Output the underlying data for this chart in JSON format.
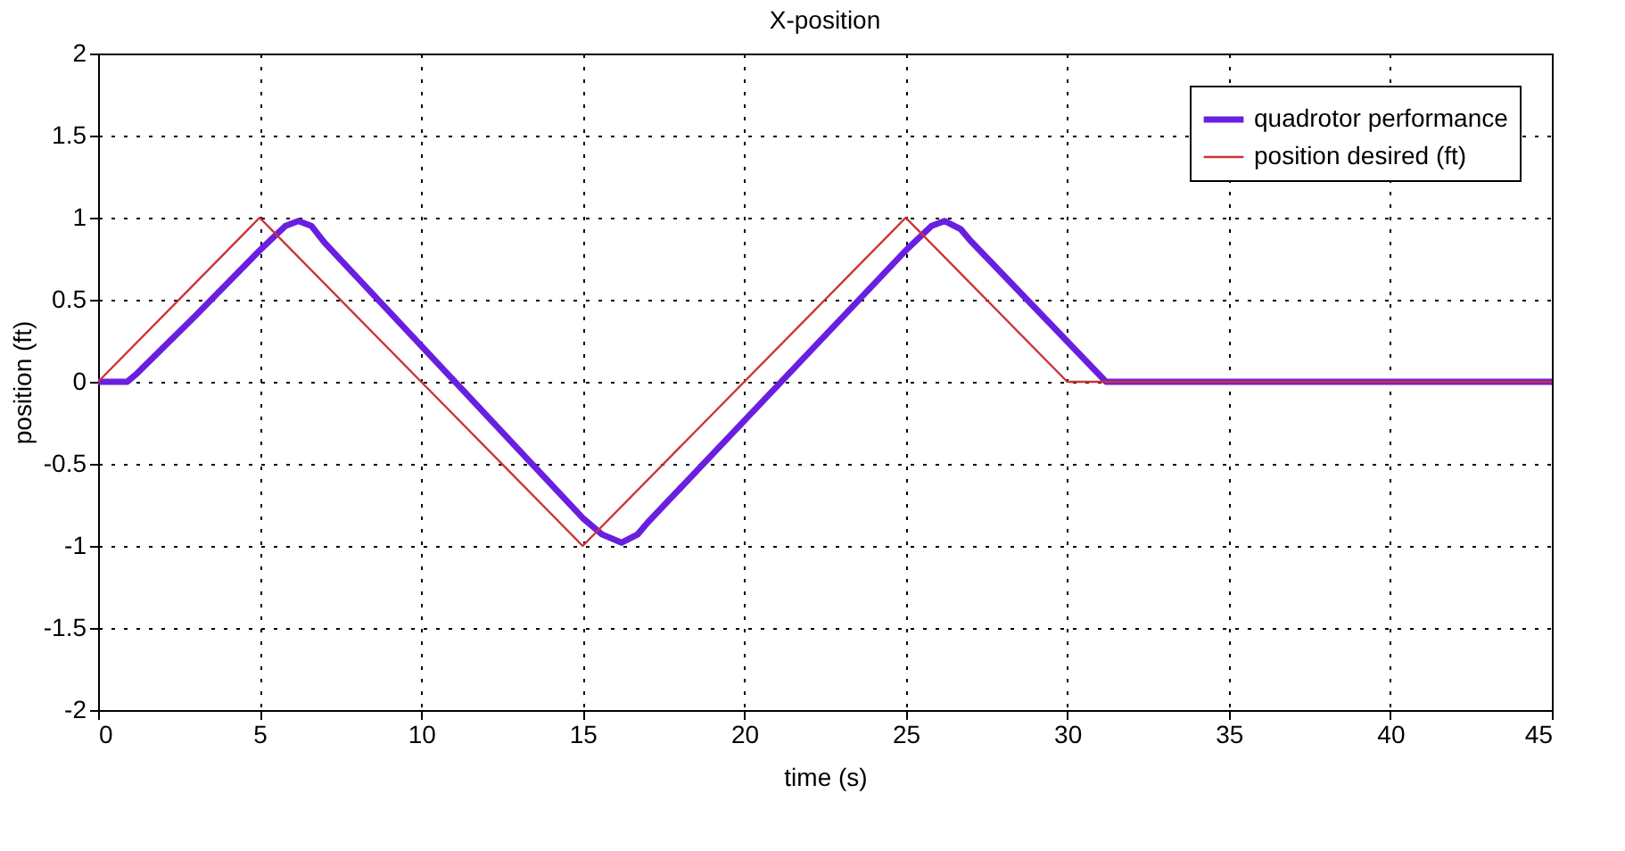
{
  "chart_data": {
    "type": "line",
    "title": "X-position",
    "xlabel": "time (s)",
    "ylabel": "position (ft)",
    "xlim": [
      0,
      45
    ],
    "xticks": [
      0,
      5,
      10,
      15,
      20,
      25,
      30,
      35,
      40,
      45
    ],
    "ylim": [
      -2,
      2
    ],
    "yticks": [
      -2,
      -1.5,
      -1,
      -0.5,
      0,
      0.5,
      1,
      1.5,
      2
    ],
    "grid": true,
    "legend": "top right",
    "line_style": "solid",
    "marker": "none",
    "series": [
      {
        "name": "quadrotor performance",
        "color": "#6a1fe0",
        "x": [
          0,
          0.9,
          1.2,
          3,
          5,
          5.8,
          6.2,
          6.6,
          7,
          15,
          15.6,
          16.2,
          16.7,
          17,
          25,
          25.8,
          26.2,
          26.7,
          27,
          31.2,
          45
        ],
        "values": [
          0,
          0,
          0.05,
          0.4,
          0.8,
          0.95,
          0.98,
          0.95,
          0.85,
          -0.83,
          -0.93,
          -0.98,
          -0.93,
          -0.86,
          0.8,
          0.95,
          0.98,
          0.93,
          0.86,
          0,
          0
        ]
      },
      {
        "name": "position desired (ft)",
        "color": "#cc3333",
        "x": [
          0,
          5,
          15,
          25,
          30,
          45
        ],
        "values": [
          0,
          1,
          -1,
          1,
          0,
          0
        ]
      }
    ]
  }
}
